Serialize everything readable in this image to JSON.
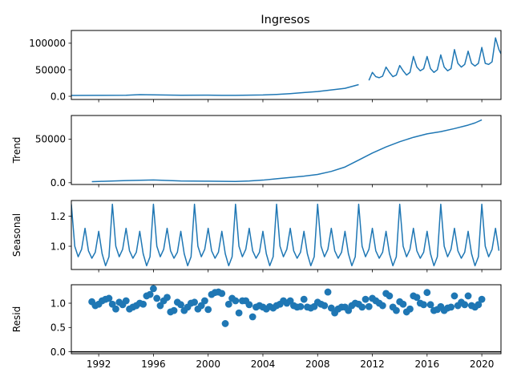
{
  "chart_data": {
    "type": "line",
    "title": "Ingresos",
    "series_color": "#1f77b4",
    "x_unit": "year",
    "xlim": [
      1990.0,
      2021.4
    ],
    "xticks": [
      1992,
      1996,
      2000,
      2004,
      2008,
      2012,
      2016,
      2020
    ],
    "panels": [
      {
        "id": "observed",
        "ylabel": "",
        "kind": "line",
        "ylim": [
          -6000,
          124000
        ],
        "yticks": [
          0,
          50000,
          100000
        ],
        "series": [
          {
            "x": [
              1990.0,
              1992.0,
              1994.0,
              1995.0,
              1996.0,
              1998.0,
              2000.0,
              2001.0,
              2002.0,
              2004.0,
              2005.0,
              2006.0,
              2007.0,
              2008.0,
              2009.0,
              2010.0,
              2011.0
            ],
            "y": [
              1500,
              1800,
              2000,
              3000,
              2700,
              2000,
              2200,
              1800,
              1800,
              2500,
              3500,
              5000,
              7000,
              9000,
              12000,
              15000,
              22000
            ]
          },
          {
            "x": [
              2011.75,
              2012.0,
              2012.25,
              2012.5,
              2012.75,
              2013.0,
              2013.25,
              2013.5,
              2013.75,
              2014.0,
              2014.25,
              2014.5,
              2014.75,
              2015.0,
              2015.25,
              2015.5,
              2015.75,
              2016.0,
              2016.25,
              2016.5,
              2016.75,
              2017.0,
              2017.25,
              2017.5,
              2017.75,
              2018.0,
              2018.25,
              2018.5,
              2018.75,
              2019.0,
              2019.25,
              2019.5,
              2019.75,
              2020.0,
              2020.25,
              2020.5,
              2020.75,
              2021.0,
              2021.25,
              2021.4
            ],
            "y": [
              30000,
              45000,
              37000,
              35000,
              38000,
              55000,
              45000,
              37000,
              40000,
              58000,
              48000,
              40000,
              45000,
              75000,
              55000,
              48000,
              52000,
              75000,
              52000,
              45000,
              50000,
              78000,
              55000,
              48000,
              52000,
              88000,
              62000,
              55000,
              60000,
              85000,
              62000,
              57000,
              62000,
              92000,
              62000,
              60000,
              65000,
              110000,
              88000,
              80000
            ]
          }
        ]
      },
      {
        "id": "trend",
        "ylabel": "Trend",
        "kind": "line",
        "ylim": [
          -2000,
          77000
        ],
        "yticks": [
          0,
          50000
        ],
        "series": [
          {
            "x": [
              1991.5,
              1992.0,
              1994.0,
              1996.0,
              1998.0,
              2000.0,
              2002.0,
              2003.0,
              2004.0,
              2005.0,
              2006.0,
              2007.0,
              2008.0,
              2009.0,
              2010.0,
              2011.0,
              2012.0,
              2013.0,
              2014.0,
              2015.0,
              2016.0,
              2017.0,
              2018.0,
              2019.0,
              2019.5,
              2020.0
            ],
            "y": [
              1200,
              1500,
              2500,
              3200,
              2000,
              1800,
              1500,
              2000,
              3000,
              4500,
              6000,
              7500,
              9500,
              13000,
              18000,
              26000,
              34000,
              41000,
              47000,
              52000,
              56000,
              58500,
              62000,
              66000,
              68500,
              72000
            ]
          }
        ]
      },
      {
        "id": "seasonal",
        "ylabel": "Seasonal",
        "kind": "seasonal",
        "ylim": [
          0.845,
          1.305
        ],
        "yticks": [
          1.0,
          1.2
        ],
        "start": 1990.0,
        "end": 2021.4,
        "cycle_values": [
          1.28,
          1.0,
          0.93,
          0.98,
          1.12,
          0.97,
          0.92,
          0.96,
          1.1,
          0.95,
          0.87,
          0.93
        ]
      },
      {
        "id": "resid",
        "ylabel": "Resid",
        "kind": "scatter",
        "baseline": 0,
        "ylim": [
          -0.04,
          1.38
        ],
        "yticks": [
          0.0,
          0.5,
          1.0
        ],
        "points": {
          "x": [
            1991.5,
            1991.75,
            1992.0,
            1992.25,
            1992.5,
            1992.75,
            1993.0,
            1993.25,
            1993.5,
            1993.75,
            1994.0,
            1994.25,
            1994.5,
            1994.75,
            1995.0,
            1995.25,
            1995.5,
            1995.75,
            1996.0,
            1996.25,
            1996.5,
            1996.75,
            1997.0,
            1997.25,
            1997.5,
            1997.75,
            1998.0,
            1998.25,
            1998.5,
            1998.75,
            1999.0,
            1999.25,
            1999.5,
            1999.75,
            2000.0,
            2000.25,
            2000.5,
            2000.75,
            2001.0,
            2001.25,
            2001.5,
            2001.75,
            2002.0,
            2002.25,
            2002.5,
            2002.75,
            2003.0,
            2003.25,
            2003.5,
            2003.75,
            2004.0,
            2004.25,
            2004.5,
            2004.75,
            2005.0,
            2005.25,
            2005.5,
            2005.75,
            2006.0,
            2006.25,
            2006.5,
            2006.75,
            2007.0,
            2007.25,
            2007.5,
            2007.75,
            2008.0,
            2008.25,
            2008.5,
            2008.75,
            2009.0,
            2009.25,
            2009.5,
            2009.75,
            2010.0,
            2010.25,
            2010.5,
            2010.75,
            2011.0,
            2011.25,
            2011.5,
            2011.75,
            2012.0,
            2012.25,
            2012.5,
            2012.75,
            2013.0,
            2013.25,
            2013.5,
            2013.75,
            2014.0,
            2014.25,
            2014.5,
            2014.75,
            2015.0,
            2015.25,
            2015.5,
            2015.75,
            2016.0,
            2016.25,
            2016.5,
            2016.75,
            2017.0,
            2017.25,
            2017.5,
            2017.75,
            2018.0,
            2018.25,
            2018.5,
            2018.75,
            2019.0,
            2019.25,
            2019.5,
            2019.75,
            2020.0
          ],
          "y": [
            1.03,
            0.95,
            0.98,
            1.05,
            1.08,
            1.1,
            0.98,
            0.88,
            1.02,
            0.97,
            1.05,
            0.88,
            0.92,
            0.95,
            1.0,
            0.98,
            1.15,
            1.18,
            1.3,
            1.1,
            0.95,
            1.05,
            1.12,
            0.82,
            0.85,
            1.02,
            0.97,
            0.85,
            0.92,
            1.0,
            1.02,
            0.88,
            0.95,
            1.05,
            0.87,
            1.18,
            1.22,
            1.23,
            1.2,
            0.58,
            0.98,
            1.1,
            1.05,
            0.8,
            1.05,
            1.05,
            0.97,
            0.72,
            0.92,
            0.95,
            0.92,
            0.88,
            0.93,
            0.9,
            0.95,
            0.98,
            1.05,
            1.0,
            1.05,
            0.95,
            0.92,
            0.93,
            1.08,
            0.92,
            0.9,
            0.93,
            1.02,
            0.98,
            0.95,
            1.23,
            0.9,
            0.8,
            0.88,
            0.92,
            0.92,
            0.85,
            0.95,
            1.0,
            0.98,
            0.92,
            1.08,
            0.93,
            1.1,
            1.05,
            1.0,
            0.95,
            1.2,
            1.15,
            0.92,
            0.85,
            1.03,
            0.98,
            0.82,
            0.88,
            1.15,
            1.12,
            1.0,
            0.97,
            1.22,
            0.97,
            0.85,
            0.87,
            0.93,
            0.85,
            0.9,
            0.92,
            1.15,
            0.95,
            1.02,
            0.97,
            1.15,
            0.95,
            0.92,
            0.97,
            1.08
          ]
        }
      }
    ]
  }
}
